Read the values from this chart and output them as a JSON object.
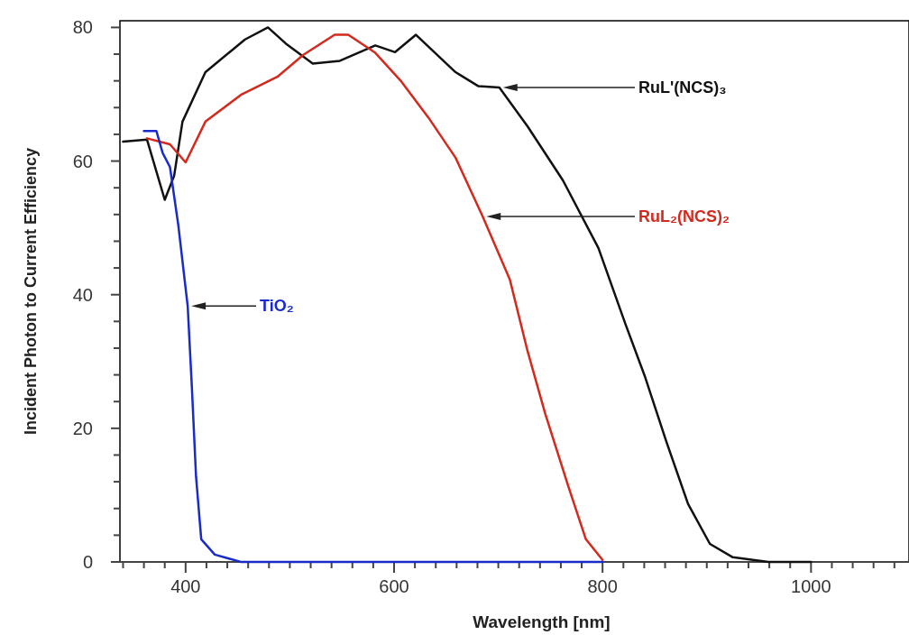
{
  "chart_data": {
    "type": "line",
    "xlabel": "Wavelength [nm]",
    "ylabel": "Incident Photon to Current Efficiency",
    "xlim": [
      337,
      1094
    ],
    "ylim": [
      0,
      81
    ],
    "xticks": [
      {
        "value": 340,
        "label": null
      },
      {
        "value": 360,
        "label": null
      },
      {
        "value": 380,
        "label": null
      },
      400,
      {
        "value": 420,
        "label": null
      },
      {
        "value": 440,
        "label": null
      },
      {
        "value": 460,
        "label": null
      },
      {
        "value": 480,
        "label": null
      },
      {
        "value": 500,
        "label": null
      },
      {
        "value": 520,
        "label": null
      },
      {
        "value": 540,
        "label": null
      },
      {
        "value": 560,
        "label": null
      },
      {
        "value": 580,
        "label": null
      },
      600,
      {
        "value": 620,
        "label": null
      },
      {
        "value": 640,
        "label": null
      },
      {
        "value": 660,
        "label": null
      },
      {
        "value": 680,
        "label": null
      },
      {
        "value": 700,
        "label": null
      },
      {
        "value": 720,
        "label": null
      },
      {
        "value": 740,
        "label": null
      },
      {
        "value": 760,
        "label": null
      },
      {
        "value": 780,
        "label": null
      },
      800,
      {
        "value": 820,
        "label": null
      },
      {
        "value": 840,
        "label": null
      },
      {
        "value": 860,
        "label": null
      },
      {
        "value": 880,
        "label": null
      },
      {
        "value": 900,
        "label": null
      },
      {
        "value": 920,
        "label": null
      },
      {
        "value": 940,
        "label": null
      },
      {
        "value": 960,
        "label": null
      },
      {
        "value": 980,
        "label": null
      },
      1000,
      {
        "value": 1020,
        "label": null
      },
      {
        "value": 1040,
        "label": null
      },
      {
        "value": 1060,
        "label": null
      },
      {
        "value": 1080,
        "label": null
      }
    ],
    "yticks": [
      0,
      {
        "value": 4,
        "label": null
      },
      {
        "value": 8,
        "label": null
      },
      {
        "value": 12,
        "label": null
      },
      {
        "value": 16,
        "label": null
      },
      20,
      {
        "value": 24,
        "label": null
      },
      {
        "value": 28,
        "label": null
      },
      {
        "value": 32,
        "label": null
      },
      {
        "value": 36,
        "label": null
      },
      40,
      {
        "value": 44,
        "label": null
      },
      {
        "value": 48,
        "label": null
      },
      {
        "value": 52,
        "label": null
      },
      {
        "value": 56,
        "label": null
      },
      60,
      {
        "value": 64,
        "label": null
      },
      {
        "value": 68,
        "label": null
      },
      {
        "value": 72,
        "label": null
      },
      {
        "value": 76,
        "label": null
      },
      80
    ],
    "grid": false,
    "marker": "none",
    "line_style": "solid",
    "series": [
      {
        "name": "RuL'(NCS)₃",
        "color": "#111111",
        "x": [
          340,
          363,
          380,
          389,
          397,
          419,
          457,
          479,
          496,
          522,
          548,
          582,
          601,
          621,
          659,
          681,
          701,
          728,
          762,
          796,
          822,
          841,
          861,
          882,
          903,
          925,
          959,
          1000
        ],
        "values": [
          62.9,
          63.2,
          54.2,
          57.8,
          65.9,
          73.3,
          78.2,
          80,
          77.6,
          74.6,
          75,
          77.3,
          76.3,
          78.9,
          73.3,
          71.2,
          71,
          65.2,
          57.1,
          47,
          35.6,
          27.6,
          18.1,
          8.7,
          2.7,
          0.7,
          0,
          0
        ]
      },
      {
        "name": "RuL₂(NCS)₂",
        "color": "#d42a1e",
        "x": [
          363,
          385,
          400,
          419,
          453,
          488,
          513,
          543,
          556,
          582,
          607,
          633,
          659,
          685,
          711,
          728,
          745,
          767,
          784,
          800
        ],
        "values": [
          63.4,
          62.5,
          59.8,
          65.9,
          69.9,
          72.6,
          75.9,
          78.9,
          78.9,
          76.2,
          71.9,
          66.5,
          60.5,
          51.7,
          42.3,
          31.6,
          22.2,
          11.4,
          3.4,
          0.3
        ]
      },
      {
        "name": "TiO₂",
        "color": "#1a2bcc",
        "x": [
          360,
          372,
          378,
          385,
          393,
          402,
          406,
          410,
          415,
          428,
          453,
          800
        ],
        "values": [
          64.5,
          64.5,
          61.2,
          59.1,
          50.4,
          38.3,
          26.2,
          12.8,
          3.4,
          1.1,
          0,
          0
        ]
      }
    ]
  }
}
